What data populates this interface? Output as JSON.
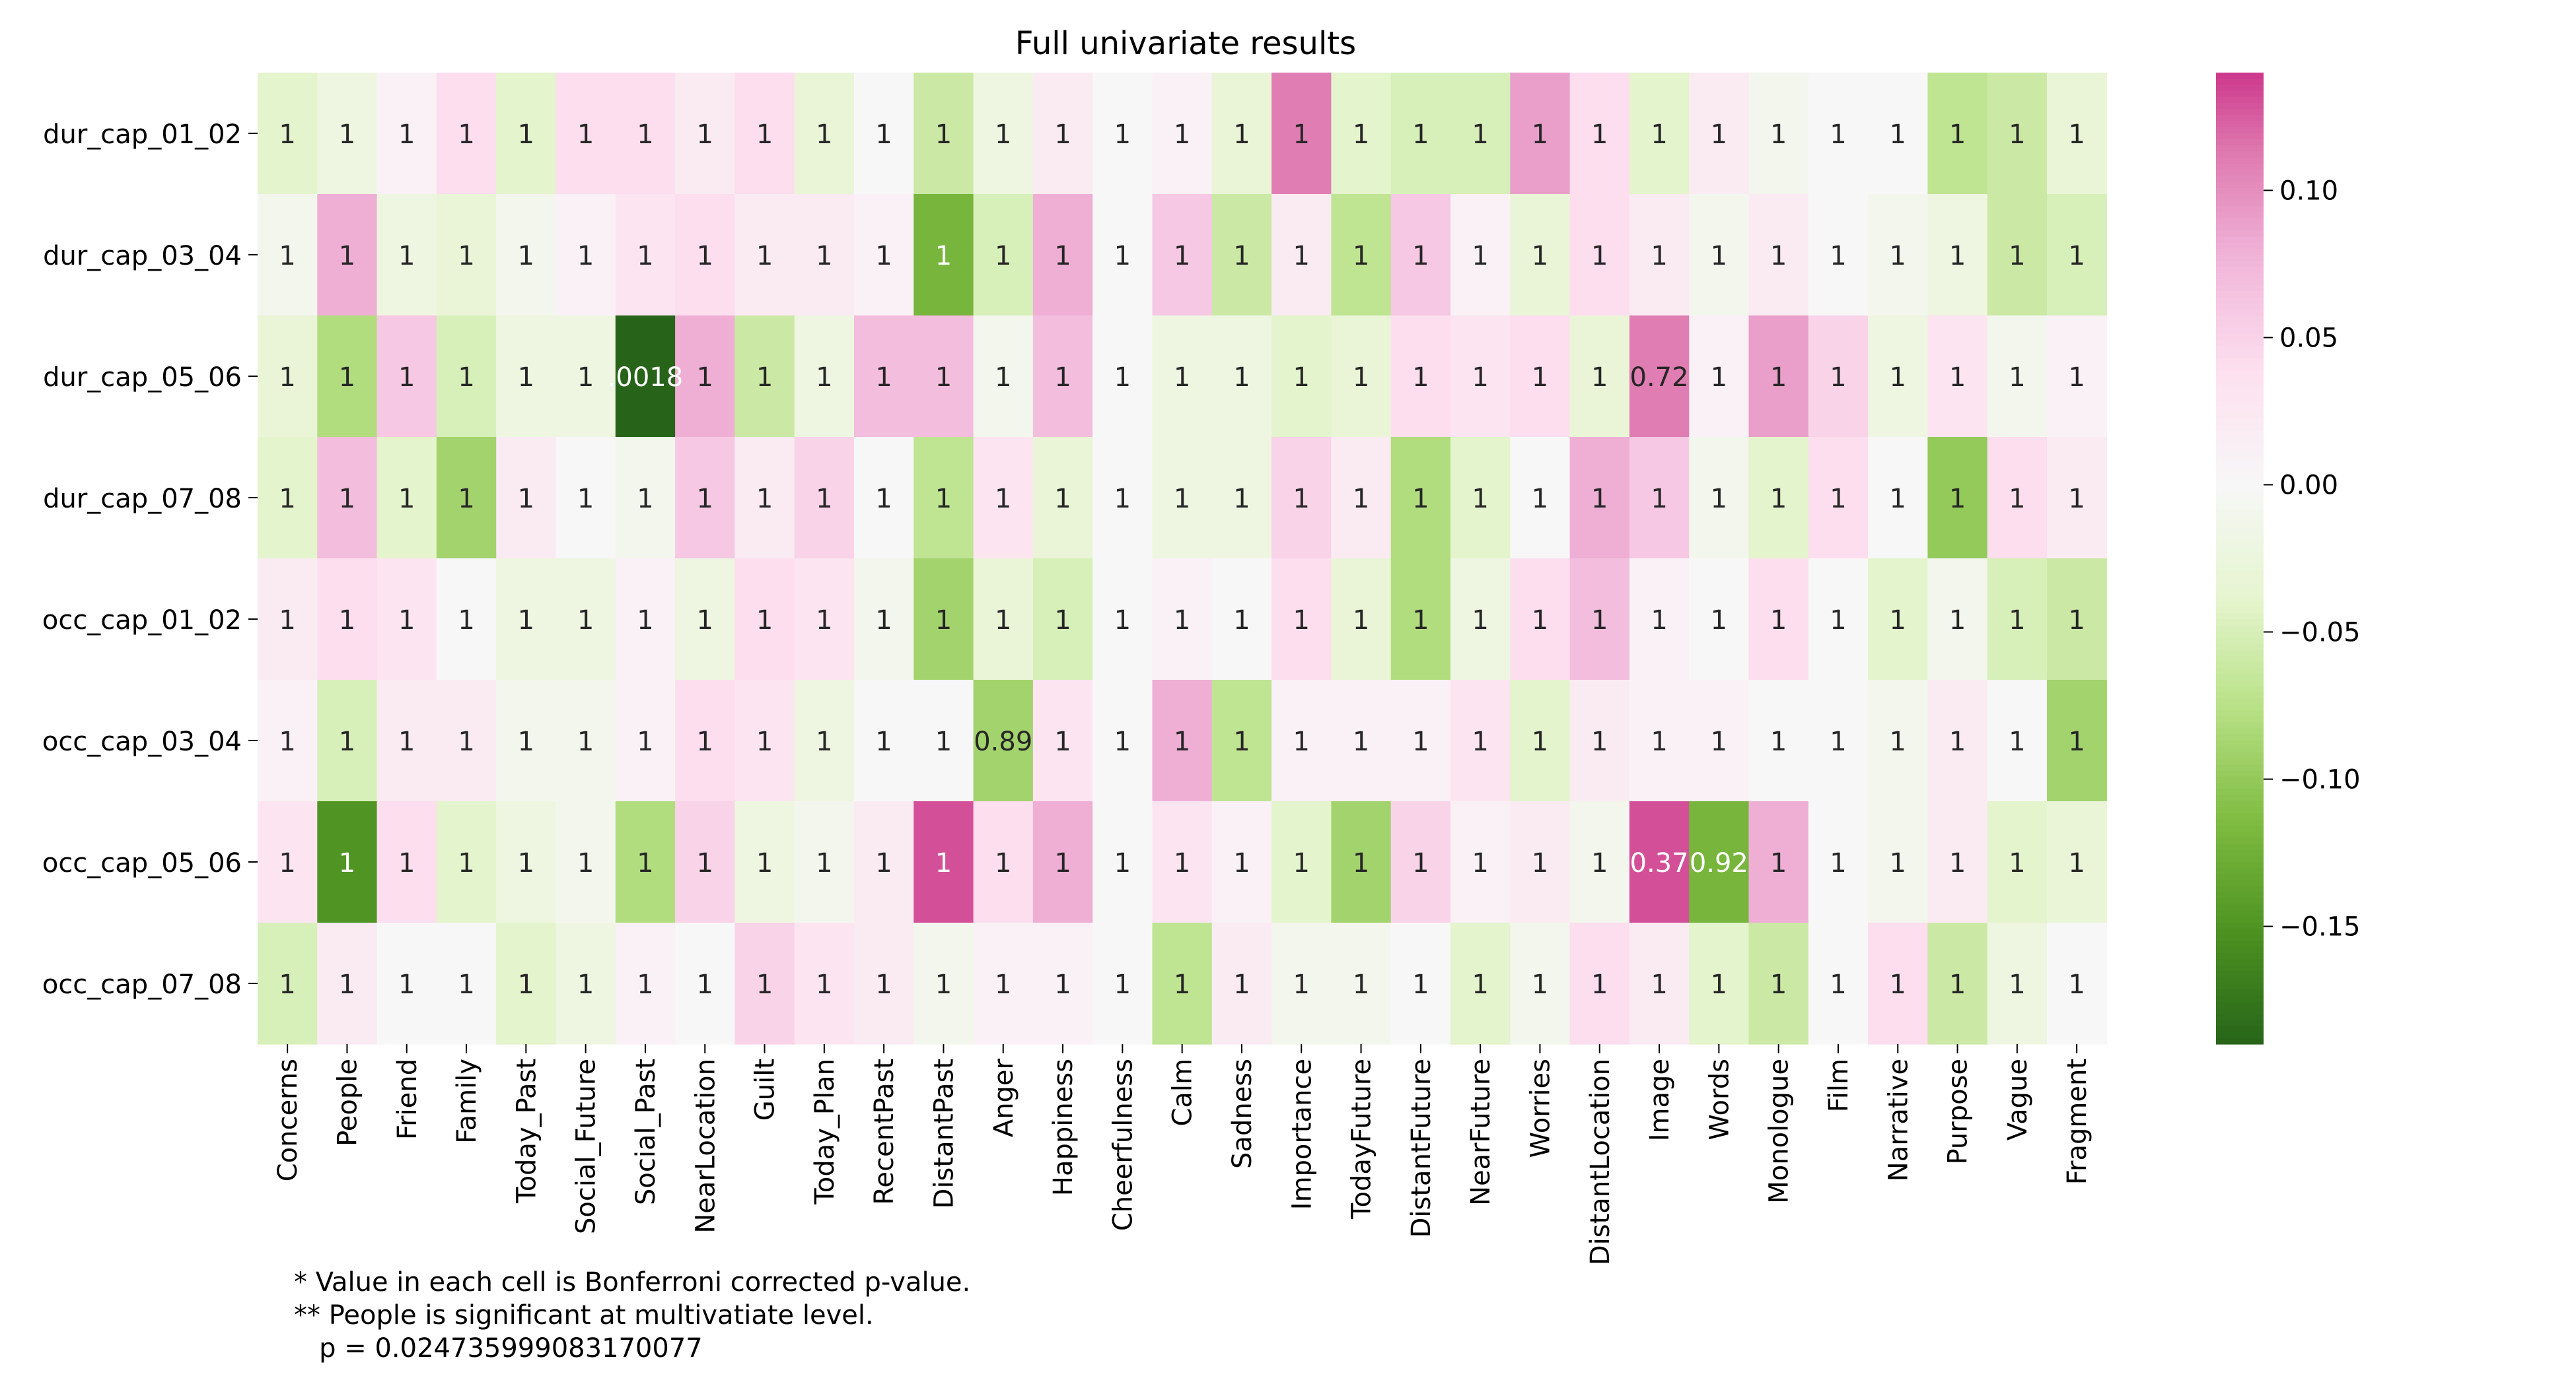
{
  "chart_data": {
    "type": "heatmap",
    "title": "Full univariate results",
    "rows": [
      "dur_cap_01_02",
      "dur_cap_03_04",
      "dur_cap_05_06",
      "dur_cap_07_08",
      "occ_cap_01_02",
      "occ_cap_03_04",
      "occ_cap_05_06",
      "occ_cap_07_08"
    ],
    "columns": [
      "Concerns",
      "People",
      "Friend",
      "Family",
      "Today_Past",
      "Social_Future",
      "Social_Past",
      "NearLocation",
      "Guilt",
      "Today_Plan",
      "RecentPast",
      "DistantPast",
      "Anger",
      "Happiness",
      "Cheerfulness",
      "Calm",
      "Sadness",
      "Importance",
      "TodayFuture",
      "DistantFuture",
      "NearFuture",
      "Worries",
      "DistantLocation",
      "Image",
      "Words",
      "Monologue",
      "Film",
      "Narrative",
      "Purpose",
      "Vague",
      "Fragment"
    ],
    "colors": [
      [
        -0.04,
        -0.02,
        0.01,
        0.04,
        -0.04,
        0.04,
        0.04,
        0.02,
        0.04,
        -0.03,
        0.0,
        -0.06,
        -0.02,
        0.02,
        0.0,
        0.01,
        -0.03,
        0.11,
        -0.04,
        -0.05,
        -0.05,
        0.09,
        0.04,
        -0.04,
        0.02,
        -0.01,
        0.0,
        0.0,
        -0.07,
        -0.06,
        -0.03
      ],
      [
        -0.01,
        0.08,
        -0.02,
        -0.03,
        -0.01,
        0.01,
        0.03,
        0.04,
        0.02,
        0.02,
        0.01,
        -0.12,
        -0.05,
        0.08,
        0.0,
        0.06,
        -0.06,
        0.02,
        -0.07,
        0.06,
        0.01,
        -0.03,
        0.04,
        0.02,
        -0.01,
        0.02,
        0.0,
        -0.01,
        -0.02,
        -0.06,
        -0.05
      ],
      [
        -0.03,
        -0.08,
        0.06,
        -0.05,
        -0.02,
        -0.02,
        -0.19,
        0.08,
        -0.06,
        -0.02,
        0.07,
        0.07,
        -0.01,
        0.07,
        0.0,
        -0.02,
        -0.02,
        -0.04,
        -0.03,
        0.04,
        0.03,
        0.04,
        -0.03,
        0.11,
        0.01,
        0.09,
        0.05,
        -0.02,
        0.03,
        -0.01,
        0.01
      ],
      [
        -0.04,
        0.07,
        -0.04,
        -0.09,
        0.02,
        0.0,
        -0.01,
        0.06,
        0.02,
        0.05,
        0.0,
        -0.07,
        0.03,
        -0.03,
        0.0,
        -0.02,
        -0.02,
        0.05,
        0.02,
        -0.08,
        -0.04,
        0.0,
        0.08,
        0.06,
        -0.01,
        -0.04,
        0.04,
        0.0,
        -0.1,
        0.04,
        0.02
      ],
      [
        0.02,
        0.04,
        0.03,
        0.0,
        -0.02,
        -0.02,
        0.01,
        -0.02,
        0.04,
        0.03,
        -0.01,
        -0.09,
        -0.03,
        -0.05,
        0.0,
        0.01,
        0.0,
        0.04,
        -0.03,
        -0.08,
        -0.02,
        0.04,
        0.07,
        0.01,
        0.0,
        0.04,
        0.0,
        -0.04,
        -0.01,
        -0.05,
        -0.06
      ],
      [
        0.01,
        -0.05,
        0.02,
        0.02,
        -0.01,
        -0.01,
        0.01,
        0.04,
        0.03,
        -0.02,
        0.0,
        0.0,
        -0.09,
        0.03,
        0.0,
        0.08,
        -0.07,
        0.01,
        0.01,
        0.01,
        0.03,
        -0.04,
        0.02,
        0.01,
        0.01,
        0.0,
        0.0,
        -0.01,
        0.02,
        0.0,
        -0.09
      ],
      [
        0.03,
        -0.15,
        0.04,
        -0.04,
        -0.02,
        -0.01,
        -0.08,
        0.05,
        -0.02,
        -0.01,
        0.02,
        0.13,
        0.04,
        0.08,
        0.0,
        0.03,
        0.01,
        -0.04,
        -0.09,
        0.05,
        0.01,
        0.02,
        -0.01,
        0.13,
        -0.12,
        0.08,
        0.0,
        -0.01,
        0.02,
        -0.04,
        -0.03
      ],
      [
        -0.05,
        0.02,
        0.0,
        0.0,
        -0.04,
        -0.02,
        0.01,
        0.0,
        0.05,
        0.03,
        0.02,
        -0.01,
        0.01,
        0.01,
        0.0,
        -0.07,
        0.02,
        -0.01,
        -0.01,
        0.0,
        -0.04,
        -0.01,
        0.04,
        0.02,
        -0.04,
        -0.06,
        0.0,
        0.04,
        -0.06,
        -0.02,
        0.0
      ]
    ],
    "annotations": [
      [
        "1",
        "1",
        "1",
        "1",
        "1",
        "1",
        "1",
        "1",
        "1",
        "1",
        "1",
        "1",
        "1",
        "1",
        "1",
        "1",
        "1",
        "1",
        "1",
        "1",
        "1",
        "1",
        "1",
        "1",
        "1",
        "1",
        "1",
        "1",
        "1",
        "1",
        "1"
      ],
      [
        "1",
        "1",
        "1",
        "1",
        "1",
        "1",
        "1",
        "1",
        "1",
        "1",
        "1",
        "1",
        "1",
        "1",
        "1",
        "1",
        "1",
        "1",
        "1",
        "1",
        "1",
        "1",
        "1",
        "1",
        "1",
        "1",
        "1",
        "1",
        "1",
        "1",
        "1"
      ],
      [
        "1",
        "1",
        "1",
        "1",
        "1",
        "1",
        ".0018",
        "1",
        "1",
        "1",
        "1",
        "1",
        "1",
        "1",
        "1",
        "1",
        "1",
        "1",
        "1",
        "1",
        "1",
        "1",
        "1",
        "0.72",
        "1",
        "1",
        "1",
        "1",
        "1",
        "1",
        "1"
      ],
      [
        "1",
        "1",
        "1",
        "1",
        "1",
        "1",
        "1",
        "1",
        "1",
        "1",
        "1",
        "1",
        "1",
        "1",
        "1",
        "1",
        "1",
        "1",
        "1",
        "1",
        "1",
        "1",
        "1",
        "1",
        "1",
        "1",
        "1",
        "1",
        "1",
        "1",
        "1"
      ],
      [
        "1",
        "1",
        "1",
        "1",
        "1",
        "1",
        "1",
        "1",
        "1",
        "1",
        "1",
        "1",
        "1",
        "1",
        "1",
        "1",
        "1",
        "1",
        "1",
        "1",
        "1",
        "1",
        "1",
        "1",
        "1",
        "1",
        "1",
        "1",
        "1",
        "1",
        "1"
      ],
      [
        "1",
        "1",
        "1",
        "1",
        "1",
        "1",
        "1",
        "1",
        "1",
        "1",
        "1",
        "1",
        "0.89",
        "1",
        "1",
        "1",
        "1",
        "1",
        "1",
        "1",
        "1",
        "1",
        "1",
        "1",
        "1",
        "1",
        "1",
        "1",
        "1",
        "1",
        "1"
      ],
      [
        "1",
        "1",
        "1",
        "1",
        "1",
        "1",
        "1",
        "1",
        "1",
        "1",
        "1",
        "1",
        "1",
        "1",
        "1",
        "1",
        "1",
        "1",
        "1",
        "1",
        "1",
        "1",
        "1",
        "0.37",
        "0.92",
        "1",
        "1",
        "1",
        "1",
        "1",
        "1"
      ],
      [
        "1",
        "1",
        "1",
        "1",
        "1",
        "1",
        "1",
        "1",
        "1",
        "1",
        "1",
        "1",
        "1",
        "1",
        "1",
        "1",
        "1",
        "1",
        "1",
        "1",
        "1",
        "1",
        "1",
        "1",
        "1",
        "1",
        "1",
        "1",
        "1",
        "1",
        "1"
      ]
    ],
    "colorbar": {
      "colormap": "PiYG",
      "range": [
        -0.19,
        0.14
      ],
      "ticks": [
        0.1,
        0.05,
        0.0,
        -0.05,
        -0.1,
        -0.15
      ],
      "tick_labels": [
        "0.10",
        "0.05",
        "0.00",
        "−0.05",
        "−0.10",
        "−0.15"
      ]
    }
  },
  "footnotes": {
    "line1": "* Value in each cell is Bonferroni corrected p-value.",
    "line2": "** People is significant at multivatiate level.",
    "line3": "   p = 0.024735999083170077"
  }
}
